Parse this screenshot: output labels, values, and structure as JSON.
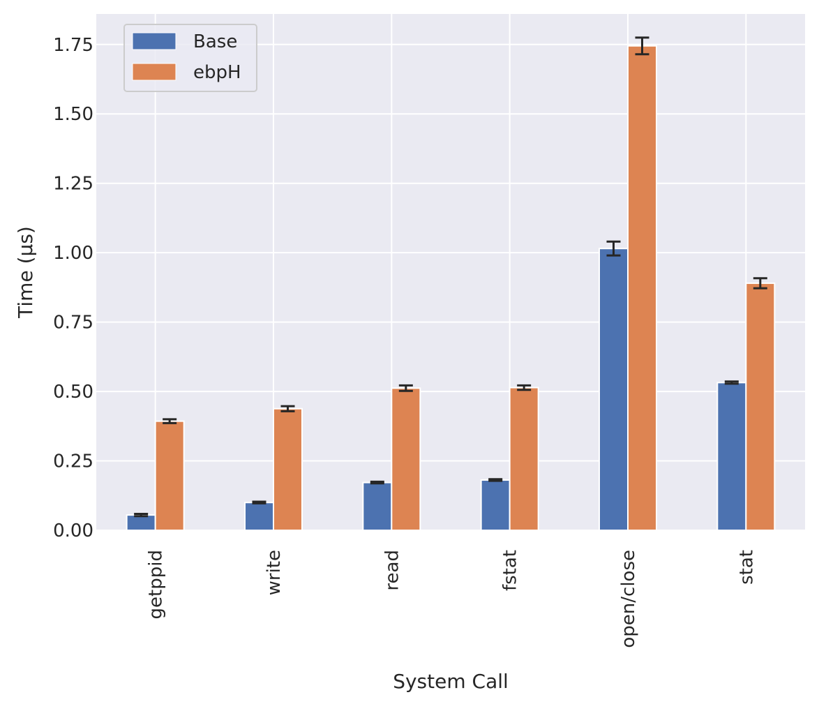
{
  "chart_data": {
    "type": "bar",
    "categories": [
      "getppid",
      "write",
      "read",
      "fstat",
      "open/close",
      "stat"
    ],
    "series": [
      {
        "name": "Base",
        "color": "#4c72b0",
        "values": [
          0.055,
          0.1,
          0.172,
          0.181,
          1.015,
          0.532
        ],
        "errors": [
          0.004,
          0.003,
          0.003,
          0.003,
          0.025,
          0.004
        ]
      },
      {
        "name": "ebpH",
        "color": "#dd8452",
        "values": [
          0.393,
          0.438,
          0.512,
          0.514,
          1.745,
          0.89
        ],
        "errors": [
          0.007,
          0.009,
          0.01,
          0.008,
          0.03,
          0.018
        ]
      }
    ],
    "xlabel": "System Call",
    "ylabel": "Time (μs)",
    "ylim": [
      0,
      1.86
    ],
    "yticks": [
      "0.00",
      "0.25",
      "0.50",
      "0.75",
      "1.00",
      "1.25",
      "1.50",
      "1.75"
    ],
    "grid": true,
    "legend_position": "top-left",
    "background_color": "#eaeaf2",
    "grid_color": "#ffffff",
    "errorbar_color": "#262626"
  }
}
